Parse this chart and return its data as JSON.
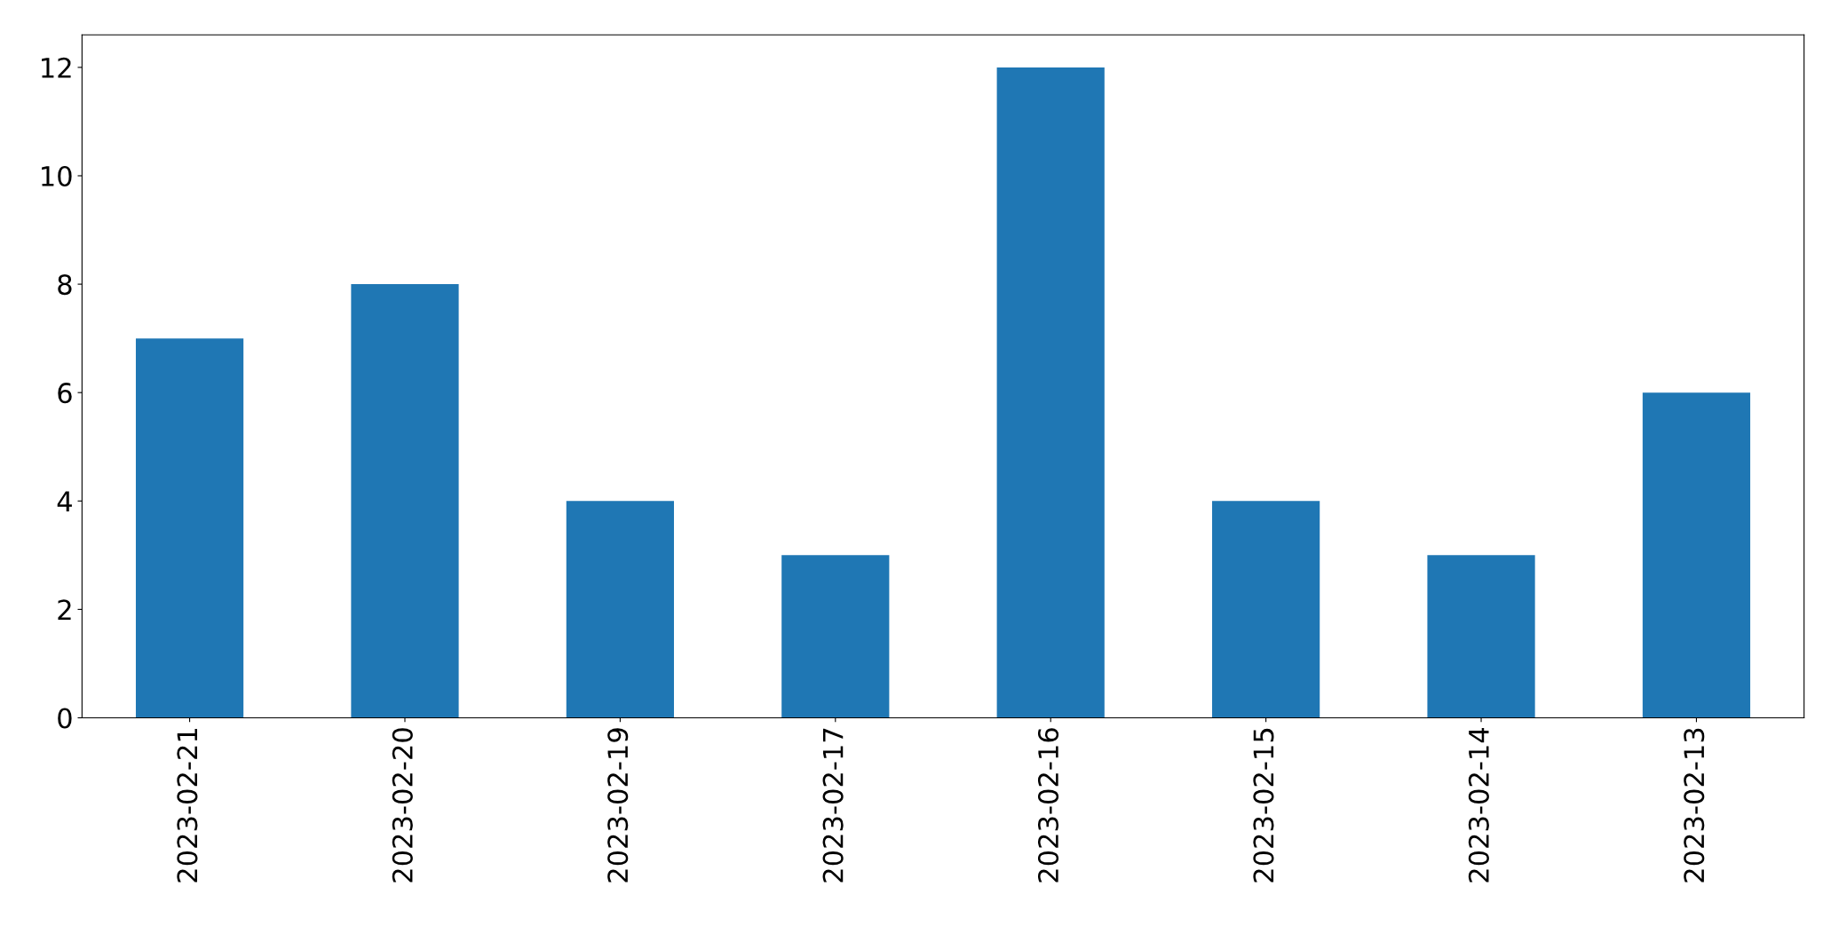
{
  "chart_data": {
    "type": "bar",
    "categories": [
      "2023-02-21",
      "2023-02-20",
      "2023-02-19",
      "2023-02-17",
      "2023-02-16",
      "2023-02-15",
      "2023-02-14",
      "2023-02-13"
    ],
    "values": [
      7,
      8,
      4,
      3,
      12,
      4,
      3,
      6
    ],
    "color": "#1f77b4",
    "ylim": [
      0,
      12.6
    ],
    "yticks": [
      0,
      2,
      4,
      6,
      8,
      10,
      12
    ],
    "grid": false,
    "legend": false
  }
}
